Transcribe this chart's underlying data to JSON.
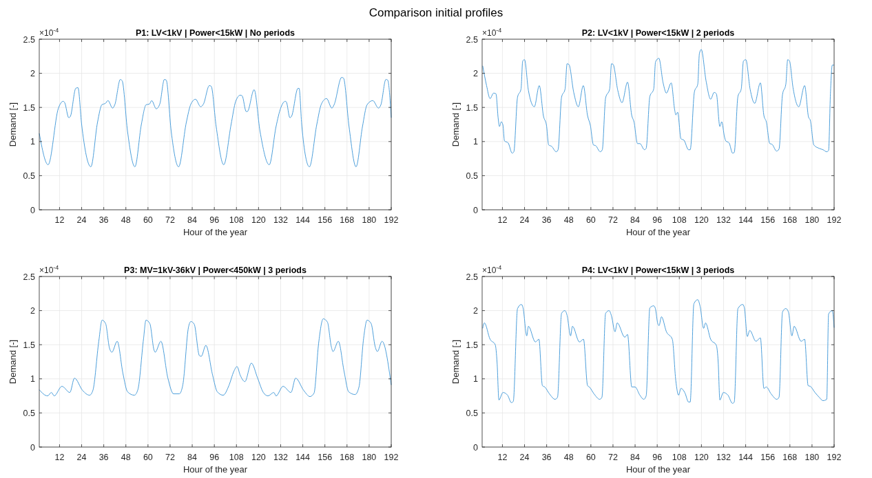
{
  "chart_data": [
    {
      "type": "line",
      "title": "P1: LV<1kV | Power<15kW | No periods",
      "xlabel": "Hour of the year",
      "ylabel": "Demand [-]",
      "annotations": [
        "Comparison initial profiles",
        "×10$^{-4}$"
      ],
      "xlim": [
        1,
        192
      ],
      "xticks": [
        12,
        24,
        36,
        48,
        60,
        72,
        84,
        96,
        108,
        120,
        132,
        144,
        156,
        168,
        180,
        192
      ],
      "ylim": [
        0,
        2.5
      ],
      "yticks": [
        0,
        0.5,
        1,
        1.5,
        2,
        2.5
      ],
      "grid": true,
      "color": "#4d9fdb",
      "x": [
        1,
        5.8,
        11.4,
        14,
        14.8,
        17,
        17.9,
        20.8,
        22,
        24,
        29,
        32.6,
        35,
        36.9,
        38.3,
        40.8,
        42,
        45,
        46,
        48.9,
        52.9,
        56.4,
        59,
        60.8,
        62,
        64.5,
        66.4,
        68.9,
        69.9,
        72.6,
        76.6,
        80.8,
        83.3,
        85.8,
        88.6,
        90.1,
        93.3,
        94.3,
        97,
        101.1,
        105.1,
        107.6,
        110.1,
        111.1,
        113.3,
        113.9,
        117.6,
        120.8,
        125.8,
        129.5,
        132,
        134.5,
        135.1,
        137,
        137.9,
        141.4,
        142,
        143.5,
        147.6,
        151.6,
        154.1,
        156.9,
        159.8,
        161,
        165.1,
        166.1,
        169.1,
        172.9,
        176.4,
        178.9,
        182,
        185.1,
        186.4,
        189.1,
        190.1,
        192
      ],
      "values": [
        1.12,
        0.66,
        1.49,
        1.59,
        1.57,
        1.35,
        1.37,
        1.78,
        1.79,
        1.25,
        0.63,
        1.28,
        1.54,
        1.56,
        1.6,
        1.49,
        1.54,
        1.91,
        1.89,
        1.15,
        0.63,
        1.25,
        1.54,
        1.55,
        1.6,
        1.48,
        1.55,
        1.91,
        1.9,
        1.15,
        0.63,
        1.28,
        1.55,
        1.62,
        1.51,
        1.55,
        1.82,
        1.81,
        1.22,
        0.66,
        1.25,
        1.59,
        1.68,
        1.67,
        1.44,
        1.44,
        1.76,
        1.15,
        0.66,
        1.22,
        1.49,
        1.59,
        1.58,
        1.35,
        1.37,
        1.78,
        1.78,
        1.22,
        0.63,
        1.25,
        1.55,
        1.63,
        1.49,
        1.54,
        1.94,
        1.93,
        1.22,
        0.63,
        1.22,
        1.54,
        1.6,
        1.49,
        1.54,
        1.91,
        1.9,
        1.35
      ]
    },
    {
      "type": "line",
      "title": "P2: LV<1kV | Power<15kW | 2 periods",
      "xlabel": "Hour of the year",
      "ylabel": "Demand [-]",
      "annotations": [
        "×10$^{-4}$"
      ],
      "xlim": [
        1,
        192
      ],
      "xticks": [
        12,
        24,
        36,
        48,
        60,
        72,
        84,
        96,
        108,
        120,
        132,
        144,
        156,
        168,
        180,
        192
      ],
      "ylim": [
        0,
        2.5
      ],
      "yticks": [
        0,
        0.5,
        1,
        1.5,
        2,
        2.5
      ],
      "grid": true,
      "color": "#4d9fdb",
      "x": [
        1.3,
        3.4,
        5.3,
        7.2,
        8.5,
        9.7,
        10.4,
        11.4,
        12.3,
        13.1,
        15.1,
        17.3,
        18.2,
        20.2,
        22.1,
        23,
        24,
        26.1,
        29.3,
        32,
        34.3,
        35.9,
        37.1,
        38.7,
        41.2,
        42.2,
        44.1,
        46,
        47.1,
        48.1,
        50.7,
        53.2,
        55.9,
        58.2,
        59.7,
        61.4,
        62.6,
        65.1,
        66.2,
        68,
        70.2,
        71.2,
        72.1,
        74.6,
        76.9,
        79.9,
        82.2,
        83.4,
        85.3,
        86.6,
        89.1,
        90,
        92,
        94.1,
        95.1,
        96.9,
        99.2,
        101,
        103.6,
        105.5,
        106.1,
        107.1,
        108.9,
        110.5,
        113,
        113.9,
        116.2,
        118,
        118.9,
        119.9,
        122.5,
        125,
        126.9,
        128.1,
        130,
        131,
        132.5,
        133.2,
        135,
        136.9,
        137.8,
        139.8,
        141.6,
        142.8,
        144.1,
        146.4,
        148.9,
        152,
        153.9,
        155.2,
        157.1,
        158.3,
        160.8,
        162.1,
        164,
        165.8,
        166.8,
        167.8,
        169.7,
        172.8,
        176,
        178.1,
        179.1,
        181,
        183.9,
        186,
        188,
        189,
        190,
        191,
        192
      ],
      "values": [
        2.11,
        1.82,
        1.63,
        1.71,
        1.7,
        1.34,
        1.22,
        1.29,
        1.24,
        1.01,
        0.98,
        0.83,
        0.85,
        1.65,
        1.77,
        2.18,
        2.2,
        1.75,
        1.51,
        1.82,
        1.37,
        1.24,
        0.95,
        0.93,
        0.85,
        0.88,
        1.65,
        1.77,
        2.14,
        2.13,
        1.72,
        1.51,
        1.82,
        1.38,
        1.24,
        0.95,
        0.94,
        0.85,
        0.88,
        1.64,
        1.77,
        2.14,
        2.13,
        1.75,
        1.57,
        1.87,
        1.38,
        1.29,
        0.97,
        0.97,
        0.88,
        0.9,
        1.66,
        1.77,
        2.17,
        2.22,
        1.86,
        1.71,
        1.86,
        1.46,
        1.39,
        1.43,
        1.04,
        1.02,
        0.88,
        0.88,
        1.73,
        1.84,
        2.29,
        2.35,
        1.89,
        1.62,
        1.72,
        1.7,
        1.22,
        1.29,
        1.07,
        1.01,
        0.98,
        0.83,
        0.84,
        1.66,
        1.77,
        2.18,
        2.2,
        1.77,
        1.56,
        1.86,
        1.38,
        1.29,
        0.97,
        0.96,
        0.86,
        0.89,
        1.69,
        1.84,
        2.2,
        2.18,
        1.79,
        1.51,
        1.82,
        1.36,
        1.31,
        0.95,
        0.9,
        0.88,
        0.85,
        0.87,
        1.7,
        2.12,
        2.12
      ]
    },
    {
      "type": "line",
      "title": "P3: MV=1kV-36kV | Power<450kW | 3 periods",
      "xlabel": "Hour of the year",
      "ylabel": "Demand [-]",
      "annotations": [
        "×10$^{-4}$"
      ],
      "xlim": [
        1,
        192
      ],
      "xticks": [
        12,
        24,
        36,
        48,
        60,
        72,
        84,
        96,
        108,
        120,
        132,
        144,
        156,
        168,
        180,
        192
      ],
      "ylim": [
        0,
        2.5
      ],
      "yticks": [
        0,
        0.5,
        1,
        1.5,
        2,
        2.5
      ],
      "grid": true,
      "color": "#4d9fdb",
      "x": [
        1,
        5.5,
        7.6,
        9.1,
        13.3,
        17.6,
        20.1,
        24.5,
        28.3,
        30.1,
        33.3,
        35.1,
        37,
        39.1,
        40.4,
        43.3,
        46.4,
        48.9,
        52.6,
        54.5,
        57.6,
        58.9,
        61,
        63.3,
        63.9,
        67,
        70.8,
        73.9,
        77,
        78.9,
        82,
        83.3,
        85.1,
        87.9,
        88.9,
        91.4,
        95.1,
        97.6,
        100.8,
        103.9,
        106.6,
        108.3,
        110.1,
        112.6,
        116.1,
        119.5,
        122.6,
        125.1,
        128.3,
        129.5,
        133.3,
        137.6,
        140.1,
        144.5,
        147.9,
        150.1,
        152.6,
        155.1,
        157.4,
        159.5,
        160.4,
        163.3,
        166.4,
        168.9,
        172.4,
        174.5,
        177,
        178.9,
        181.1,
        183.3,
        184.5,
        187,
        192
      ],
      "values": [
        0.84,
        0.75,
        0.8,
        0.75,
        0.89,
        0.8,
        1.01,
        0.83,
        0.76,
        0.83,
        1.55,
        1.86,
        1.81,
        1.45,
        1.39,
        1.55,
        1.08,
        0.81,
        0.76,
        0.84,
        1.59,
        1.86,
        1.81,
        1.42,
        1.39,
        1.55,
        1.01,
        0.78,
        0.78,
        0.91,
        1.76,
        1.84,
        1.8,
        1.34,
        1.33,
        1.49,
        1.05,
        0.81,
        0.76,
        0.9,
        1.11,
        1.18,
        1.05,
        0.96,
        1.23,
        1.01,
        0.8,
        0.75,
        0.8,
        0.75,
        0.89,
        0.8,
        1.01,
        0.83,
        0.74,
        0.79,
        1.52,
        1.88,
        1.83,
        1.47,
        1.4,
        1.55,
        1.11,
        0.81,
        0.77,
        0.88,
        1.59,
        1.86,
        1.81,
        1.47,
        1.4,
        1.55,
        0.91
      ]
    },
    {
      "type": "line",
      "title": "P4: LV<1kV | Power<15kW | 3 periods",
      "xlabel": "Hour of the year",
      "ylabel": "Demand [-]",
      "annotations": [
        "×10$^{-4}$"
      ],
      "xlim": [
        1,
        192
      ],
      "xticks": [
        12,
        24,
        36,
        48,
        60,
        72,
        84,
        96,
        108,
        120,
        132,
        144,
        156,
        168,
        180,
        192
      ],
      "ylim": [
        0,
        2.5
      ],
      "yticks": [
        0,
        0.5,
        1,
        1.5,
        2,
        2.5
      ],
      "grid": true,
      "color": "#4d9fdb",
      "x": [
        1.3,
        2.2,
        5.3,
        8.1,
        9.1,
        10.1,
        12.3,
        14.8,
        16.9,
        17.9,
        20.2,
        22.3,
        23.2,
        25.2,
        26.1,
        29.9,
        31.8,
        33.7,
        35,
        37.5,
        40.6,
        41.9,
        44.1,
        45.9,
        47.1,
        49,
        50,
        53.8,
        56,
        58.2,
        59.2,
        61.7,
        64.8,
        66,
        68,
        69.9,
        71.2,
        73.1,
        74.3,
        78.4,
        79.9,
        82.2,
        84,
        86.6,
        88.7,
        90,
        92,
        94.1,
        95,
        96.3,
        97,
        98.3,
        101,
        104.2,
        106.1,
        107.6,
        108.9,
        111.1,
        113,
        113.9,
        115.9,
        118,
        119.3,
        121.2,
        122.2,
        125,
        128.1,
        129.1,
        130,
        131.9,
        134.4,
        136.9,
        137.8,
        139.8,
        142.4,
        143.3,
        144.9,
        146.2,
        149.6,
        152,
        153.9,
        155.2,
        157.8,
        160.9,
        162.1,
        164,
        165.8,
        167.2,
        169.1,
        170.3,
        174.1,
        176,
        177.9,
        179.1,
        181.6,
        183.9,
        186,
        188,
        189,
        191,
        192
      ],
      "values": [
        1.74,
        1.82,
        1.58,
        1.5,
        1.24,
        0.69,
        0.8,
        0.76,
        0.65,
        0.67,
        2.03,
        2.09,
        2.04,
        1.63,
        1.77,
        1.54,
        1.58,
        0.9,
        0.88,
        0.78,
        0.7,
        0.73,
        1.96,
        2,
        1.93,
        1.63,
        1.77,
        1.54,
        1.58,
        0.9,
        0.88,
        0.78,
        0.7,
        0.73,
        1.96,
        2,
        1.92,
        1.69,
        1.82,
        1.61,
        1.65,
        0.88,
        0.88,
        0.76,
        0.7,
        0.75,
        2.04,
        2.07,
        2.03,
        1.81,
        1.78,
        1.91,
        1.69,
        1.58,
        0.97,
        0.76,
        0.86,
        0.79,
        0.66,
        0.66,
        2.1,
        2.16,
        2.06,
        1.74,
        1.82,
        1.58,
        1.49,
        1.24,
        0.69,
        0.8,
        0.76,
        0.64,
        0.66,
        2.03,
        2.09,
        2.04,
        1.62,
        1.71,
        1.55,
        1.6,
        0.86,
        0.88,
        0.78,
        0.7,
        0.73,
        1.98,
        2.03,
        1.98,
        1.63,
        1.77,
        1.55,
        1.58,
        0.9,
        0.89,
        0.8,
        0.73,
        0.68,
        0.7,
        1.95,
        2,
        1.75
      ]
    }
  ]
}
